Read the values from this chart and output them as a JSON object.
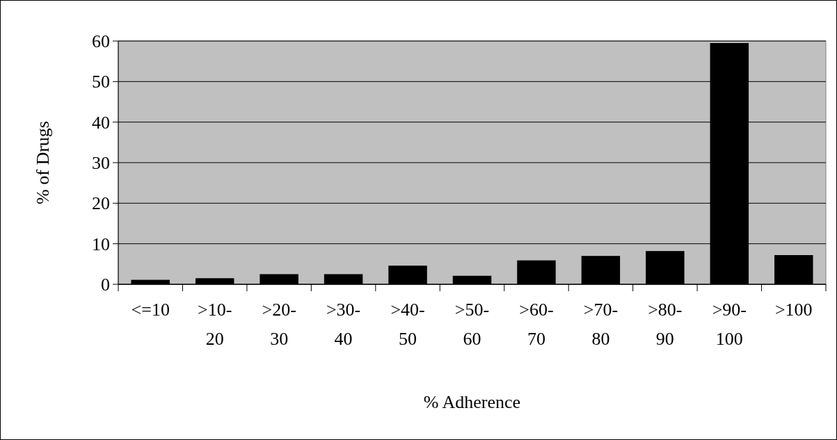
{
  "chart_data": {
    "type": "bar",
    "xlabel": "% Adherence",
    "ylabel": "% of Drugs",
    "categories": [
      "<=10",
      ">10-20",
      ">20-30",
      ">30-40",
      ">40-50",
      ">50-60",
      ">60-70",
      ">70-80",
      ">80-90",
      ">90-100",
      ">100"
    ],
    "values": [
      1.1,
      1.5,
      2.5,
      2.5,
      4.6,
      2.1,
      5.9,
      7.0,
      8.2,
      59.5,
      7.2
    ],
    "color": "#000000",
    "ylim": [
      0,
      60
    ],
    "yticks": [
      0,
      10,
      20,
      30,
      40,
      50,
      60
    ],
    "grid": "y"
  }
}
